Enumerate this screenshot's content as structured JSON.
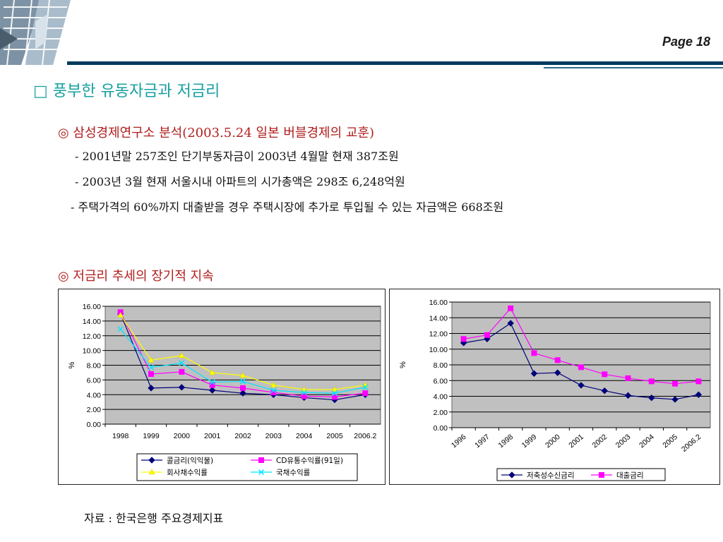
{
  "page": {
    "label": "Page 18"
  },
  "heading": "□ 풍부한 유동자금과 저금리",
  "section1": {
    "title": "◎ 삼성경제연구소 분석(2003.5.24 일본 버블경제의 교훈)",
    "bullets": [
      "-  2001년말 257조인 단기부동자금이 2003년 4월말 현재 387조원",
      "-  2003년 3월 현재 서울시내 아파트의 시가총액은 298조 6,248억원",
      "- 주택가격의 60%까지 대출받을 경우 주택시장에 추가로 투입될 수 있는 자금액은 668조원"
    ]
  },
  "section2": {
    "title": "◎ 저금리 추세의 장기적 지속"
  },
  "source": "자료 : 한국은행 주요경제지표",
  "colors": {
    "navy": "#00007a",
    "magenta": "#ff00ff",
    "yellow": "#ffff00",
    "cyan": "#00e5ff",
    "plot_bg": "#c0c0c0",
    "heading": "#169fa0",
    "section": "#b11d1d"
  },
  "chart_data": [
    {
      "type": "line",
      "ylabel": "%",
      "ylim": [
        0,
        16
      ],
      "y_ticks": [
        "0.00",
        "2.00",
        "4.00",
        "6.00",
        "8.00",
        "10.00",
        "12.00",
        "14.00",
        "16.00"
      ],
      "categories": [
        "1998",
        "1999",
        "2000",
        "2001",
        "2002",
        "2003",
        "2004",
        "2005",
        "2006.2"
      ],
      "grid": true,
      "legend_position": "bottom",
      "series": [
        {
          "name": "콜금리(익익물)",
          "color": "#00007a",
          "marker": "diamond",
          "values": [
            15.0,
            4.9,
            5.0,
            4.6,
            4.2,
            4.0,
            3.6,
            3.3,
            4.0
          ]
        },
        {
          "name": "CD유통수익률(91일)",
          "color": "#ff00ff",
          "marker": "square",
          "values": [
            15.2,
            6.8,
            7.1,
            5.3,
            4.9,
            4.3,
            3.8,
            3.7,
            4.2
          ]
        },
        {
          "name": "회사채수익률",
          "color": "#ffff00",
          "marker": "triangle",
          "values": [
            14.8,
            8.7,
            9.3,
            7.0,
            6.6,
            5.3,
            4.7,
            4.7,
            5.3
          ]
        },
        {
          "name": "국채수익률",
          "color": "#00e5ff",
          "marker": "x",
          "values": [
            12.9,
            7.7,
            8.3,
            5.7,
            5.8,
            4.6,
            4.3,
            4.2,
            5.0
          ]
        }
      ]
    },
    {
      "type": "line",
      "ylabel": "%",
      "ylim": [
        0,
        16
      ],
      "y_ticks": [
        "0.00",
        "2.00",
        "4.00",
        "6.00",
        "8.00",
        "10.00",
        "12.00",
        "14.00",
        "16.00"
      ],
      "categories": [
        "1996",
        "1997",
        "1998",
        "1999",
        "2000",
        "2001",
        "2002",
        "2003",
        "2004",
        "2005",
        "2006.2"
      ],
      "grid": true,
      "legend_position": "bottom",
      "series": [
        {
          "name": "저축성수신금리",
          "color": "#00007a",
          "marker": "diamond",
          "values": [
            10.8,
            11.3,
            13.3,
            6.9,
            7.0,
            5.4,
            4.7,
            4.1,
            3.8,
            3.6,
            4.2
          ]
        },
        {
          "name": "대출금리",
          "color": "#ff00ff",
          "marker": "square",
          "values": [
            11.3,
            11.8,
            15.2,
            9.5,
            8.6,
            7.7,
            6.8,
            6.3,
            5.9,
            5.6,
            5.9
          ]
        }
      ]
    }
  ]
}
